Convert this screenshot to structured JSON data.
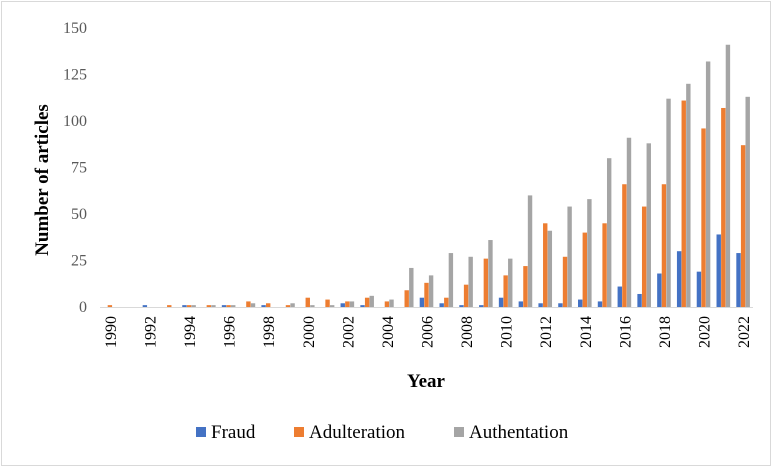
{
  "chart_data": {
    "type": "bar",
    "title": "",
    "xlabel": "Year",
    "ylabel": "Number of articles",
    "ylim": [
      0,
      150
    ],
    "yticks": [
      0,
      25,
      50,
      75,
      100,
      125,
      150
    ],
    "xtick_labels": [
      "1990",
      "1992",
      "1994",
      "1996",
      "1998",
      "2000",
      "2002",
      "2004",
      "2006",
      "2008",
      "2010",
      "2012",
      "2014",
      "2016",
      "2018",
      "2020",
      "2022"
    ],
    "grid": false,
    "legend_position": "bottom",
    "categories": [
      "1990",
      "1991",
      "1992",
      "1993",
      "1994",
      "1995",
      "1996",
      "1997",
      "1998",
      "1999",
      "2000",
      "2001",
      "2002",
      "2003",
      "2004",
      "2005",
      "2006",
      "2007",
      "2008",
      "2009",
      "2010",
      "2011",
      "2012",
      "2013",
      "2014",
      "2015",
      "2016",
      "2017",
      "2018",
      "2019",
      "2020",
      "2021",
      "2022"
    ],
    "series": [
      {
        "name": "Fraud",
        "color": "#4472c4",
        "values": [
          0,
          0,
          1,
          0,
          1,
          0,
          1,
          0,
          1,
          0,
          0,
          0,
          2,
          1,
          0,
          0,
          5,
          2,
          1,
          1,
          5,
          3,
          2,
          2,
          4,
          3,
          11,
          7,
          18,
          30,
          19,
          39,
          29
        ]
      },
      {
        "name": "Adulteration",
        "color": "#ed7d31",
        "values": [
          1,
          0,
          0,
          1,
          1,
          1,
          1,
          3,
          2,
          1,
          5,
          4,
          3,
          5,
          3,
          9,
          13,
          5,
          12,
          26,
          17,
          22,
          45,
          27,
          40,
          45,
          66,
          54,
          66,
          111,
          96,
          107,
          87
        ]
      },
      {
        "name": "Authentation",
        "color": "#a5a5a5",
        "values": [
          0,
          0,
          0,
          0,
          1,
          1,
          1,
          2,
          0,
          2,
          1,
          1,
          3,
          6,
          4,
          21,
          17,
          29,
          27,
          36,
          26,
          60,
          41,
          54,
          58,
          80,
          91,
          88,
          112,
          120,
          132,
          141,
          113
        ]
      }
    ]
  }
}
